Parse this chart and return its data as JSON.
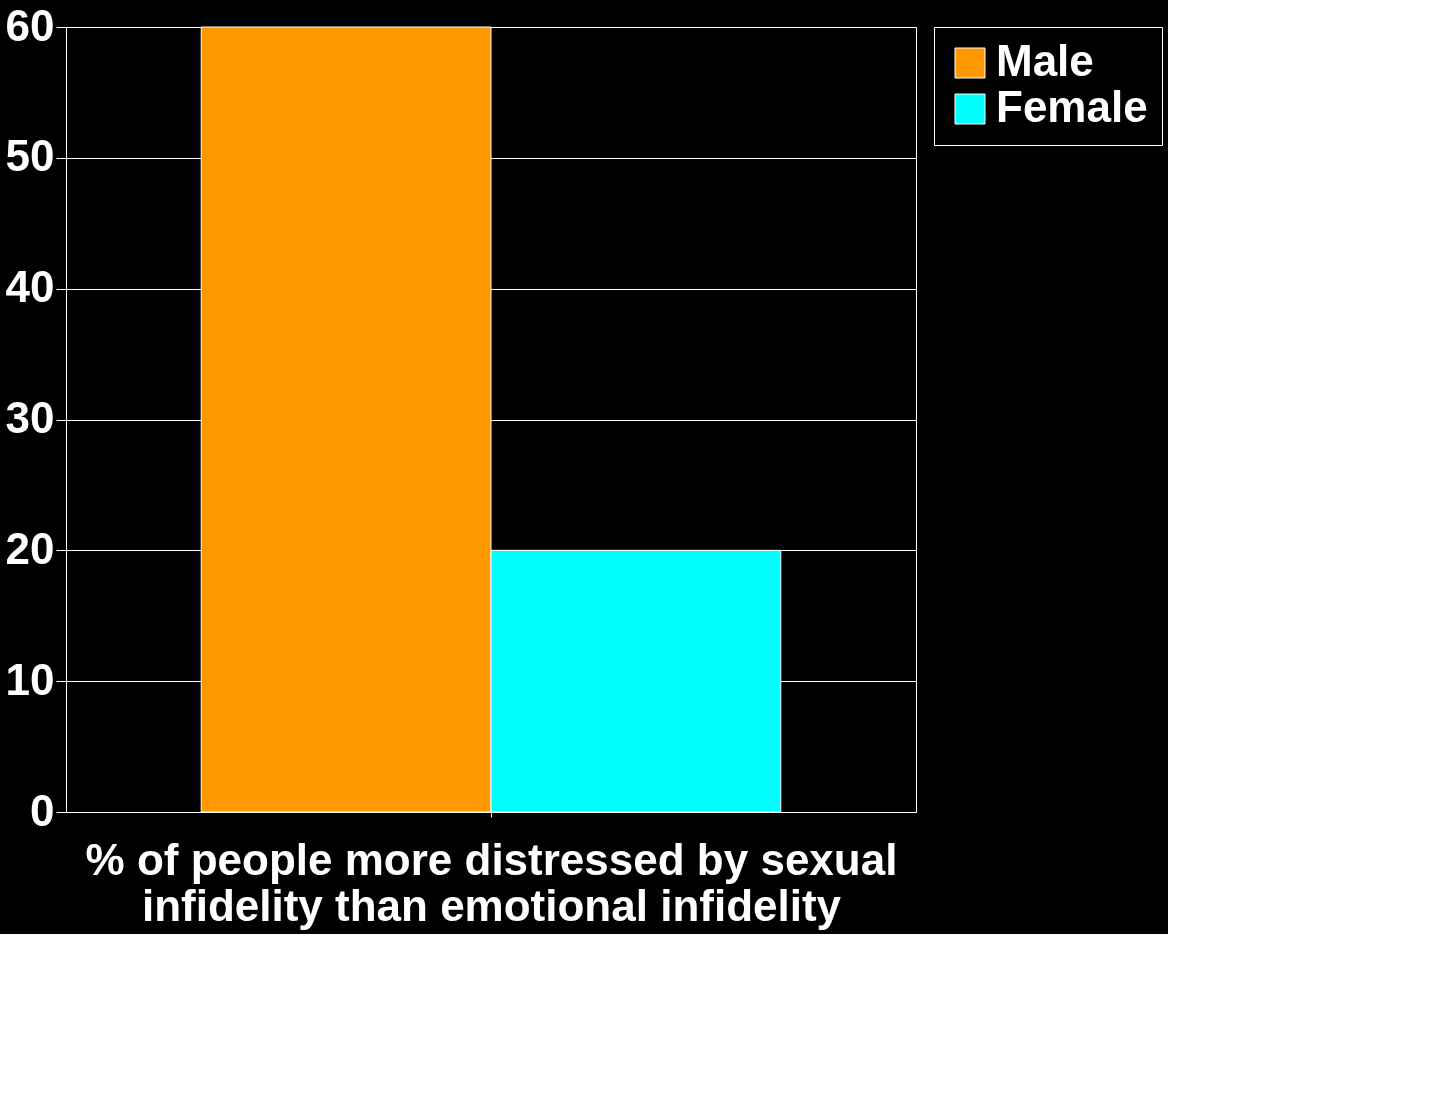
{
  "chart_data": {
    "type": "bar",
    "categories": [
      null
    ],
    "xlabel": "% of people more distressed by sexual infidelity than emotional infidelity",
    "series": [
      {
        "name": "Male",
        "color": "#ff9900",
        "values": [
          60
        ]
      },
      {
        "name": "Female",
        "color": "#00ffff",
        "values": [
          20
        ]
      }
    ],
    "ylim": [
      0,
      60
    ],
    "yticks": [
      0,
      10,
      20,
      30,
      40,
      50,
      60
    ],
    "grid": "y",
    "legend": "right"
  }
}
